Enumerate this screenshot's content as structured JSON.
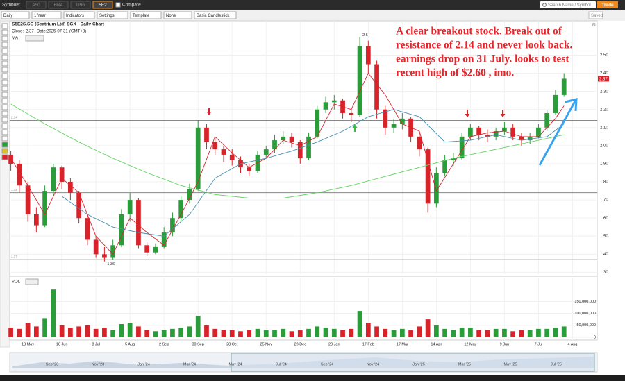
{
  "toolbar": {
    "symbols_label": "Symbols:",
    "tabs": [
      "A50",
      "BN4",
      "U96",
      "5E2"
    ],
    "compare": "Compare",
    "search": "Search Name / Symbol",
    "trade": "Trade"
  },
  "controls": [
    "Daily",
    "1 Year",
    "Indicators",
    "Settings",
    "Template",
    "None",
    "Basic Candlestick"
  ],
  "saved": "Saved",
  "chart_data": {
    "type": "candlestick",
    "title": "S5E2S.SG (Seatrium Ltd) SGX - Daily Chart",
    "close_label": "Close:",
    "date_label": "Date:",
    "date": "2025-07-31",
    "timezone": "(GMT+8)",
    "ma_label": "MA",
    "volume_label": "VOL",
    "annotation": [
      "A clear breakout stock. Break out of",
      "resistance of 2.14 and never look back.",
      "earnings drop on 31 July. looks to test",
      "recent high of $2.60 , imo."
    ],
    "up_color": "#2a9d3a",
    "down_color": "#d8232a",
    "open": [
      1.95,
      1.9,
      1.78,
      1.62,
      1.56,
      1.75,
      1.88,
      1.8,
      1.74,
      1.6,
      1.48,
      1.4,
      1.38,
      1.45,
      1.62,
      1.7,
      1.45,
      1.41,
      1.44,
      1.52,
      1.6,
      1.7,
      1.76,
      2.1,
      2.02,
      1.98,
      1.95,
      1.92,
      1.88,
      1.86,
      1.95,
      1.98,
      2.03,
      2.05,
      2.02,
      1.93,
      2.05,
      2.2,
      2.24,
      2.25,
      2.18,
      2.17,
      2.55,
      2.45,
      2.2,
      2.1,
      2.12,
      2.15,
      2.05,
      1.98,
      1.68,
      1.85,
      1.92,
      1.93,
      2.05,
      2.1,
      2.06,
      2.05,
      2.08,
      2.1,
      2.05,
      2.03,
      2.05,
      2.1,
      2.18,
      2.28
    ],
    "high": [
      1.97,
      1.92,
      1.8,
      1.66,
      1.78,
      1.9,
      1.89,
      1.82,
      1.75,
      1.62,
      1.5,
      1.44,
      1.48,
      1.65,
      1.74,
      1.71,
      1.47,
      1.46,
      1.55,
      1.63,
      1.72,
      1.79,
      2.14,
      2.12,
      2.05,
      2.0,
      1.98,
      1.94,
      1.9,
      1.97,
      2.0,
      2.06,
      2.08,
      2.07,
      2.03,
      2.07,
      2.22,
      2.27,
      2.28,
      2.26,
      2.2,
      2.6,
      2.58,
      2.47,
      2.22,
      2.15,
      2.18,
      2.16,
      2.07,
      1.99,
      1.88,
      1.95,
      1.96,
      2.07,
      2.12,
      2.11,
      2.09,
      2.1,
      2.13,
      2.12,
      2.07,
      2.07,
      2.12,
      2.2,
      2.31,
      2.4
    ],
    "low": [
      1.86,
      1.74,
      1.58,
      1.52,
      1.55,
      1.72,
      1.76,
      1.7,
      1.57,
      1.45,
      1.38,
      1.36,
      1.37,
      1.44,
      1.58,
      1.43,
      1.39,
      1.4,
      1.43,
      1.5,
      1.58,
      1.68,
      1.75,
      1.98,
      1.95,
      1.91,
      1.89,
      1.85,
      1.83,
      1.85,
      1.93,
      1.96,
      2.01,
      1.99,
      1.9,
      1.92,
      2.04,
      2.18,
      2.2,
      2.15,
      2.13,
      2.16,
      2.4,
      2.15,
      2.06,
      2.07,
      2.09,
      2.02,
      1.94,
      1.63,
      1.66,
      1.83,
      1.89,
      1.92,
      2.03,
      2.03,
      2.02,
      2.03,
      2.06,
      2.03,
      2.0,
      2.01,
      2.04,
      2.08,
      2.17,
      2.27
    ],
    "close": [
      1.9,
      1.78,
      1.62,
      1.56,
      1.75,
      1.88,
      1.8,
      1.74,
      1.6,
      1.48,
      1.4,
      1.38,
      1.45,
      1.62,
      1.7,
      1.45,
      1.41,
      1.44,
      1.52,
      1.6,
      1.7,
      1.76,
      2.1,
      2.02,
      1.98,
      1.95,
      1.92,
      1.88,
      1.86,
      1.95,
      1.98,
      2.03,
      2.05,
      2.02,
      1.93,
      2.05,
      2.2,
      2.24,
      2.25,
      2.18,
      2.17,
      2.55,
      2.45,
      2.2,
      2.1,
      2.12,
      2.15,
      2.05,
      1.98,
      1.68,
      1.85,
      1.92,
      1.93,
      2.05,
      2.1,
      2.06,
      2.05,
      2.08,
      2.1,
      2.05,
      2.03,
      2.05,
      2.1,
      2.18,
      2.28,
      2.37
    ],
    "volume": [
      40000000,
      35000000,
      60000000,
      45000000,
      80000000,
      200000000,
      50000000,
      40000000,
      45000000,
      50000000,
      35000000,
      40000000,
      30000000,
      55000000,
      60000000,
      45000000,
      30000000,
      25000000,
      30000000,
      35000000,
      40000000,
      45000000,
      90000000,
      50000000,
      35000000,
      30000000,
      30000000,
      25000000,
      30000000,
      35000000,
      30000000,
      30000000,
      35000000,
      25000000,
      30000000,
      35000000,
      45000000,
      40000000,
      35000000,
      30000000,
      35000000,
      110000000,
      60000000,
      45000000,
      35000000,
      30000000,
      35000000,
      30000000,
      45000000,
      75000000,
      50000000,
      35000000,
      30000000,
      40000000,
      40000000,
      30000000,
      30000000,
      35000000,
      35000000,
      25000000,
      30000000,
      30000000,
      35000000,
      35000000,
      40000000,
      45000000
    ],
    "moving_averages": [
      {
        "color": "#d8232a",
        "x": [
          0,
          2,
          4,
          6,
          8,
          10,
          12,
          14,
          16,
          18,
          20,
          22,
          24,
          26,
          28,
          30,
          32,
          34,
          36,
          38,
          40,
          42,
          44,
          46,
          48,
          50,
          52,
          54,
          56,
          58,
          60,
          62,
          64,
          65
        ],
        "values": [
          1.93,
          1.78,
          1.62,
          1.82,
          1.74,
          1.5,
          1.4,
          1.6,
          1.52,
          1.45,
          1.62,
          1.8,
          2.05,
          1.96,
          1.88,
          1.93,
          2.03,
          2.0,
          2.05,
          2.23,
          2.2,
          2.4,
          2.28,
          2.12,
          2.08,
          1.75,
          1.9,
          2.05,
          2.07,
          2.08,
          2.05,
          2.05,
          2.15,
          2.22
        ]
      },
      {
        "color": "#4a8fb0",
        "x": [
          6,
          9,
          12,
          15,
          18,
          21,
          24,
          27,
          30,
          33,
          36,
          39,
          42,
          45,
          48,
          51,
          54,
          57,
          60,
          63,
          65
        ],
        "values": [
          1.72,
          1.62,
          1.55,
          1.52,
          1.5,
          1.62,
          1.82,
          1.9,
          1.93,
          1.97,
          2.02,
          2.08,
          2.16,
          2.2,
          2.16,
          2.02,
          2.03,
          2.06,
          2.03,
          2.05,
          2.12
        ]
      },
      {
        "color": "#5fd35f",
        "x": [
          0,
          4,
          8,
          12,
          16,
          20,
          24,
          28,
          32,
          36,
          40,
          44,
          48,
          52,
          56,
          60,
          65
        ],
        "values": [
          2.23,
          2.12,
          2.02,
          1.93,
          1.85,
          1.78,
          1.73,
          1.71,
          1.71,
          1.74,
          1.78,
          1.83,
          1.88,
          1.93,
          1.97,
          2.01,
          2.06
        ]
      }
    ],
    "levels": [
      2.14,
      1.74,
      1.37
    ],
    "point_labels": [
      {
        "index": 41,
        "value": 2.6
      },
      {
        "index": 11,
        "value": 1.36
      }
    ],
    "xlim": [
      -0.13,
      68.9
    ],
    "xticks": [
      {
        "value": 2,
        "label": "13 May"
      },
      {
        "value": 6,
        "label": "10 Jun"
      },
      {
        "value": 10,
        "label": "8 Jul"
      },
      {
        "value": 14,
        "label": "5 Aug"
      },
      {
        "value": 18,
        "label": "2 Sep"
      },
      {
        "value": 22,
        "label": "30 Sep"
      },
      {
        "value": 26,
        "label": "28 Oct"
      },
      {
        "value": 30,
        "label": "25 Nov"
      },
      {
        "value": 34,
        "label": "23 Dec"
      },
      {
        "value": 38,
        "label": "20 Jan"
      },
      {
        "value": 42,
        "label": "17 Feb"
      },
      {
        "value": 46,
        "label": "17 Mar"
      },
      {
        "value": 50,
        "label": "14 Apr"
      },
      {
        "value": 54,
        "label": "12 May"
      },
      {
        "value": 58,
        "label": "9 Jun"
      },
      {
        "value": 62,
        "label": "7 Jul"
      },
      {
        "value": 66,
        "label": "4 Aug"
      }
    ],
    "ylim": [
      1.29,
      2.69
    ],
    "yticks": [
      {
        "value": 1.3,
        "label": "1.30"
      },
      {
        "value": 1.4,
        "label": "1.40"
      },
      {
        "value": 1.5,
        "label": "1.50"
      },
      {
        "value": 1.6,
        "label": "1.60"
      },
      {
        "value": 1.7,
        "label": "1.70"
      },
      {
        "value": 1.8,
        "label": "1.80"
      },
      {
        "value": 1.9,
        "label": "1.90"
      },
      {
        "value": 2.0,
        "label": "2.00"
      },
      {
        "value": 2.1,
        "label": "2.10"
      },
      {
        "value": 2.2,
        "label": "2.20"
      },
      {
        "value": 2.3,
        "label": "2.30"
      },
      {
        "value": 2.4,
        "label": "2.40"
      },
      {
        "value": 2.5,
        "label": "2.50"
      }
    ],
    "volume_ylim": [
      -12000000,
      250000000
    ],
    "volume_yticks": [
      0,
      {
        "value": 50000000,
        "label": "50,000,000"
      },
      {
        "value": 100000000,
        "label": "100,000,000"
      },
      {
        "value": 150000000,
        "label": "150,000,000"
      }
    ],
    "grid": true,
    "navigator_labels": [
      "Sep '23",
      "Nov '23",
      "Jan '24",
      "Mar '24",
      "May '24",
      "Jul '24",
      "Sep '24",
      "Nov '24",
      "Jan '25",
      "Mar '25",
      "May '25",
      "Jul '25"
    ]
  }
}
